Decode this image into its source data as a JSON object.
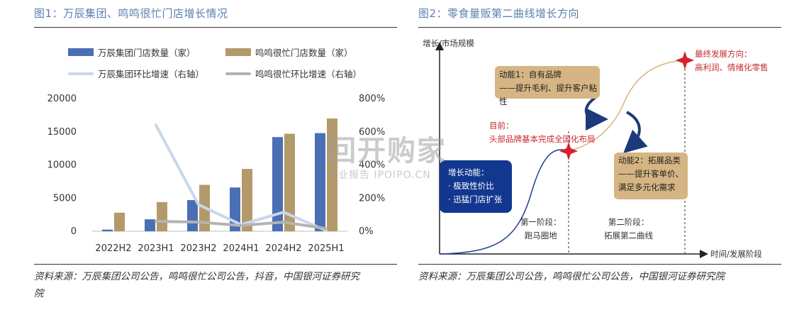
{
  "left": {
    "title": "图1：万辰集团、鸣鸣很忙门店增长情况",
    "source_line1": "资料来源：万辰集团公司公告，鸣鸣很忙公司公告，抖音，中国银河证券研究",
    "source_line2": "院"
  },
  "right": {
    "title": "图2：零食量贩第二曲线增长方向",
    "source": "资料来源：万辰集团公司公告，鸣鸣很忙公司公告，中国银河证券研究院"
  },
  "chart_data": [
    {
      "type": "bar",
      "categories": [
        "2022H2",
        "2023H1",
        "2023H2",
        "2024H1",
        "2024H2",
        "2025H1"
      ],
      "ylim": [
        0,
        20000
      ],
      "y_ticks": [
        "0",
        "5000",
        "10000",
        "15000",
        "20000"
      ],
      "y2lim": [
        0,
        800
      ],
      "y2_ticks": [
        "0%",
        "200%",
        "400%",
        "600%",
        "800%"
      ],
      "grid": false,
      "legend_placement": "top",
      "series": [
        {
          "name": "万辰集团门店数量（家）",
          "kind": "bar",
          "axis": "left",
          "color": "#4a6fb5",
          "values": [
            250,
            1800,
            4700,
            6600,
            14200,
            14800
          ]
        },
        {
          "name": "鸣鸣很忙门店数量（家）",
          "kind": "bar",
          "axis": "left",
          "color": "#b49a6a",
          "values": [
            2800,
            4400,
            7000,
            9400,
            14700,
            17000
          ]
        },
        {
          "name": "万辰集团环比增速（右轴）",
          "kind": "line",
          "axis": "right",
          "color": "#c9d7ea",
          "values": [
            null,
            640,
            160,
            40,
            115,
            4
          ]
        },
        {
          "name": "鸣鸣很忙环比增速（右轴）",
          "kind": "line",
          "axis": "right",
          "color": "#b3b3b3",
          "values": [
            null,
            60,
            55,
            35,
            55,
            16
          ]
        }
      ]
    },
    {
      "type": "diagram",
      "x_axis_label": "时间/发展阶段",
      "y_axis_label": "增长/市场规模",
      "start_box": {
        "title": "增长动能：",
        "items": [
          "· 极致性价比",
          "· 迅猛门店扩张"
        ]
      },
      "stage1": {
        "line1": "第一阶段：",
        "line2": "跑马圈地"
      },
      "stage2": {
        "line1": "第二阶段：",
        "line2": "拓展第二曲线"
      },
      "current": {
        "line1": "目前：",
        "line2": "头部品牌基本完成全国化布局"
      },
      "driver1": {
        "line1": "动能1：自有品牌",
        "line2": "——提升毛利、提升客户粘性"
      },
      "driver2": {
        "line1": "动能2：拓展品类",
        "line2": "——提升客单价、",
        "line3": "满足多元化需求"
      },
      "final": {
        "line1": "最终发展方向：",
        "line2": "高利润、情绪化零售"
      },
      "colors": {
        "curve_blue": "#1f3f8f",
        "curve_tan": "#d9b07a",
        "box_blue": "#12378f",
        "box_tan": "#d5b583",
        "star_red": "#d8202a",
        "arrow_blue": "#1c3a7a"
      }
    }
  ],
  "watermark": {
    "big": "回开购家",
    "small": "行业报告 IPOIPO.CN"
  }
}
